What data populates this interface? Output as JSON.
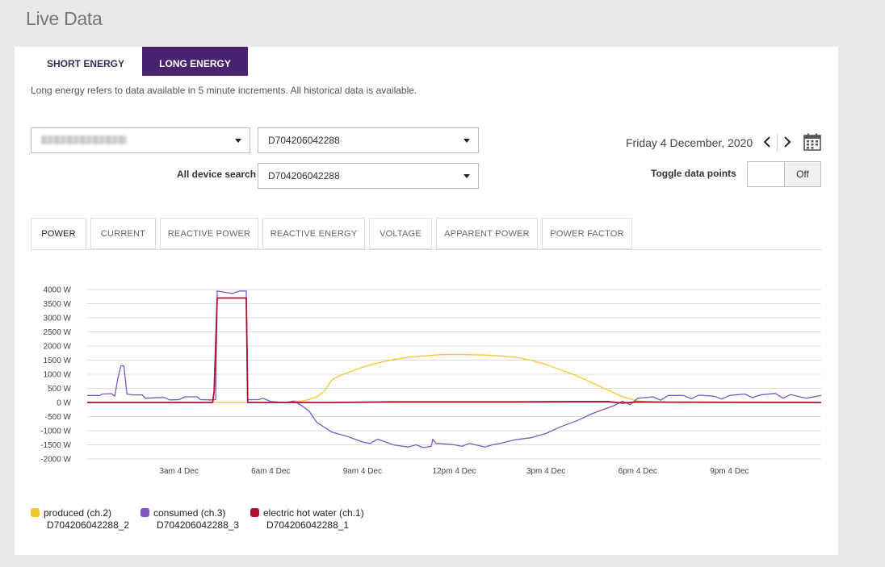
{
  "page": {
    "title": "Live Data"
  },
  "energy_tabs": [
    {
      "label": "SHORT ENERGY",
      "active": false
    },
    {
      "label": "LONG ENERGY",
      "active": true
    }
  ],
  "description": "Long energy refers to data available in 5 minute increments. All historical data is available.",
  "controls": {
    "site_select": {
      "value": ""
    },
    "device_select": {
      "value": "D704206042288"
    },
    "all_device_search": {
      "label": "All device search",
      "value": "D704206042288"
    },
    "date": "Friday 4 December, 2020",
    "toggle_data_points": {
      "label": "Toggle data points",
      "value": "Off"
    }
  },
  "measure_tabs": [
    "POWER",
    "CURRENT",
    "REACTIVE POWER",
    "REACTIVE ENERGY",
    "VOLTAGE",
    "APPARENT POWER",
    "POWER FACTOR"
  ],
  "active_measure_tab": "POWER",
  "colors": {
    "accent": "#4a2370",
    "produced": "#f4c430",
    "consumed": "#7e57c2",
    "hot_water": "#b0102f"
  },
  "icons": {
    "prev": "chevron-left-icon",
    "next": "chevron-right-icon",
    "calendar": "calendar-icon",
    "dropdown": "caret-down-icon"
  },
  "chart_data": {
    "type": "line",
    "title": "",
    "xlabel": "",
    "ylabel": "",
    "x_unit": "hours",
    "xlim": [
      0,
      24
    ],
    "ylim": [
      -2000,
      4000
    ],
    "yticks": [
      -2000,
      -1500,
      -1000,
      -500,
      0,
      500,
      1000,
      1500,
      2000,
      2500,
      3000,
      3500,
      4000
    ],
    "ytick_labels": [
      "-2000 W",
      "-1500 W",
      "-1000 W",
      "-500 W",
      "0 W",
      "500 W",
      "1000 W",
      "1500 W",
      "2000 W",
      "2500 W",
      "3000 W",
      "3500 W",
      "4000 W"
    ],
    "xticks": [
      3,
      6,
      9,
      12,
      15,
      18,
      21
    ],
    "xtick_labels": [
      "3am 4 Dec",
      "6am 4 Dec",
      "9am 4 Dec",
      "12pm 4 Dec",
      "3pm 4 Dec",
      "6pm 4 Dec",
      "9pm 4 Dec"
    ],
    "grid": true,
    "legend_position": "bottom-left",
    "series": [
      {
        "name": "produced (ch.2)",
        "device": "D704206042288_2",
        "color": "#f4c430",
        "points": [
          [
            0,
            0
          ],
          [
            6.5,
            0
          ],
          [
            6.75,
            50
          ],
          [
            7,
            50
          ],
          [
            7.25,
            100
          ],
          [
            7.5,
            200
          ],
          [
            7.75,
            400
          ],
          [
            8,
            800
          ],
          [
            8.25,
            950
          ],
          [
            8.5,
            1050
          ],
          [
            9,
            1250
          ],
          [
            9.5,
            1400
          ],
          [
            10,
            1520
          ],
          [
            10.5,
            1600
          ],
          [
            11,
            1650
          ],
          [
            11.5,
            1690
          ],
          [
            12,
            1700
          ],
          [
            12.5,
            1690
          ],
          [
            13,
            1680
          ],
          [
            13.5,
            1650
          ],
          [
            14,
            1600
          ],
          [
            14.5,
            1500
          ],
          [
            15,
            1350
          ],
          [
            15.5,
            1150
          ],
          [
            16,
            950
          ],
          [
            16.5,
            700
          ],
          [
            17,
            450
          ],
          [
            17.5,
            200
          ],
          [
            18,
            50
          ],
          [
            18.5,
            20
          ],
          [
            19,
            0
          ],
          [
            24,
            0
          ]
        ]
      },
      {
        "name": "consumed (ch.3)",
        "device": "D704206042288_3",
        "color": "#7e57c2",
        "points": [
          [
            0,
            250
          ],
          [
            0.4,
            250
          ],
          [
            0.5,
            300
          ],
          [
            0.8,
            310
          ],
          [
            0.9,
            220
          ],
          [
            1,
            850
          ],
          [
            1.1,
            1300
          ],
          [
            1.2,
            1300
          ],
          [
            1.3,
            300
          ],
          [
            1.5,
            270
          ],
          [
            1.8,
            270
          ],
          [
            1.9,
            150
          ],
          [
            2.5,
            180
          ],
          [
            2.7,
            90
          ],
          [
            3,
            100
          ],
          [
            3.2,
            200
          ],
          [
            3.6,
            200
          ],
          [
            3.7,
            100
          ],
          [
            4,
            90
          ],
          [
            4.2,
            100
          ],
          [
            4.25,
            3950
          ],
          [
            4.5,
            3900
          ],
          [
            4.75,
            3860
          ],
          [
            5,
            3950
          ],
          [
            5.2,
            3950
          ],
          [
            5.25,
            100
          ],
          [
            5.6,
            100
          ],
          [
            5.75,
            150
          ],
          [
            6,
            30
          ],
          [
            6.5,
            0
          ],
          [
            6.75,
            50
          ],
          [
            7,
            -100
          ],
          [
            7.25,
            -300
          ],
          [
            7.5,
            -700
          ],
          [
            8,
            -1050
          ],
          [
            8.5,
            -1200
          ],
          [
            9,
            -1400
          ],
          [
            9.25,
            -1450
          ],
          [
            9.5,
            -1300
          ],
          [
            10,
            -1500
          ],
          [
            10.5,
            -1580
          ],
          [
            10.75,
            -1500
          ],
          [
            11,
            -1600
          ],
          [
            11.25,
            -1550
          ],
          [
            11.3,
            -1300
          ],
          [
            11.4,
            -1450
          ],
          [
            11.5,
            -1450
          ],
          [
            12,
            -1500
          ],
          [
            12.25,
            -1550
          ],
          [
            12.5,
            -1450
          ],
          [
            13,
            -1580
          ],
          [
            13.25,
            -1500
          ],
          [
            13.5,
            -1450
          ],
          [
            14,
            -1320
          ],
          [
            14.5,
            -1250
          ],
          [
            15,
            -1100
          ],
          [
            15.5,
            -850
          ],
          [
            16,
            -650
          ],
          [
            16.5,
            -400
          ],
          [
            17,
            -200
          ],
          [
            17.25,
            -100
          ],
          [
            17.5,
            50
          ],
          [
            17.75,
            -80
          ],
          [
            18,
            150
          ],
          [
            18.5,
            200
          ],
          [
            18.75,
            80
          ],
          [
            19,
            250
          ],
          [
            19.5,
            250
          ],
          [
            19.75,
            130
          ],
          [
            20,
            260
          ],
          [
            20.5,
            220
          ],
          [
            20.75,
            120
          ],
          [
            21,
            250
          ],
          [
            21.5,
            300
          ],
          [
            21.75,
            170
          ],
          [
            22,
            270
          ],
          [
            22.5,
            320
          ],
          [
            22.75,
            150
          ],
          [
            23,
            280
          ],
          [
            23.5,
            150
          ],
          [
            24,
            250
          ]
        ]
      },
      {
        "name": "electric hot water (ch.1)",
        "device": "D704206042288_1",
        "color": "#b0102f",
        "points": [
          [
            0,
            0
          ],
          [
            4.1,
            0
          ],
          [
            4.15,
            400
          ],
          [
            4.25,
            3700
          ],
          [
            5,
            3700
          ],
          [
            5.2,
            3700
          ],
          [
            5.25,
            0
          ],
          [
            6,
            0
          ],
          [
            8,
            0
          ],
          [
            10,
            20
          ],
          [
            12,
            20
          ],
          [
            14,
            20
          ],
          [
            16,
            30
          ],
          [
            17,
            30
          ],
          [
            17.5,
            -20
          ],
          [
            18,
            20
          ],
          [
            19,
            10
          ],
          [
            24,
            0
          ]
        ]
      }
    ]
  }
}
